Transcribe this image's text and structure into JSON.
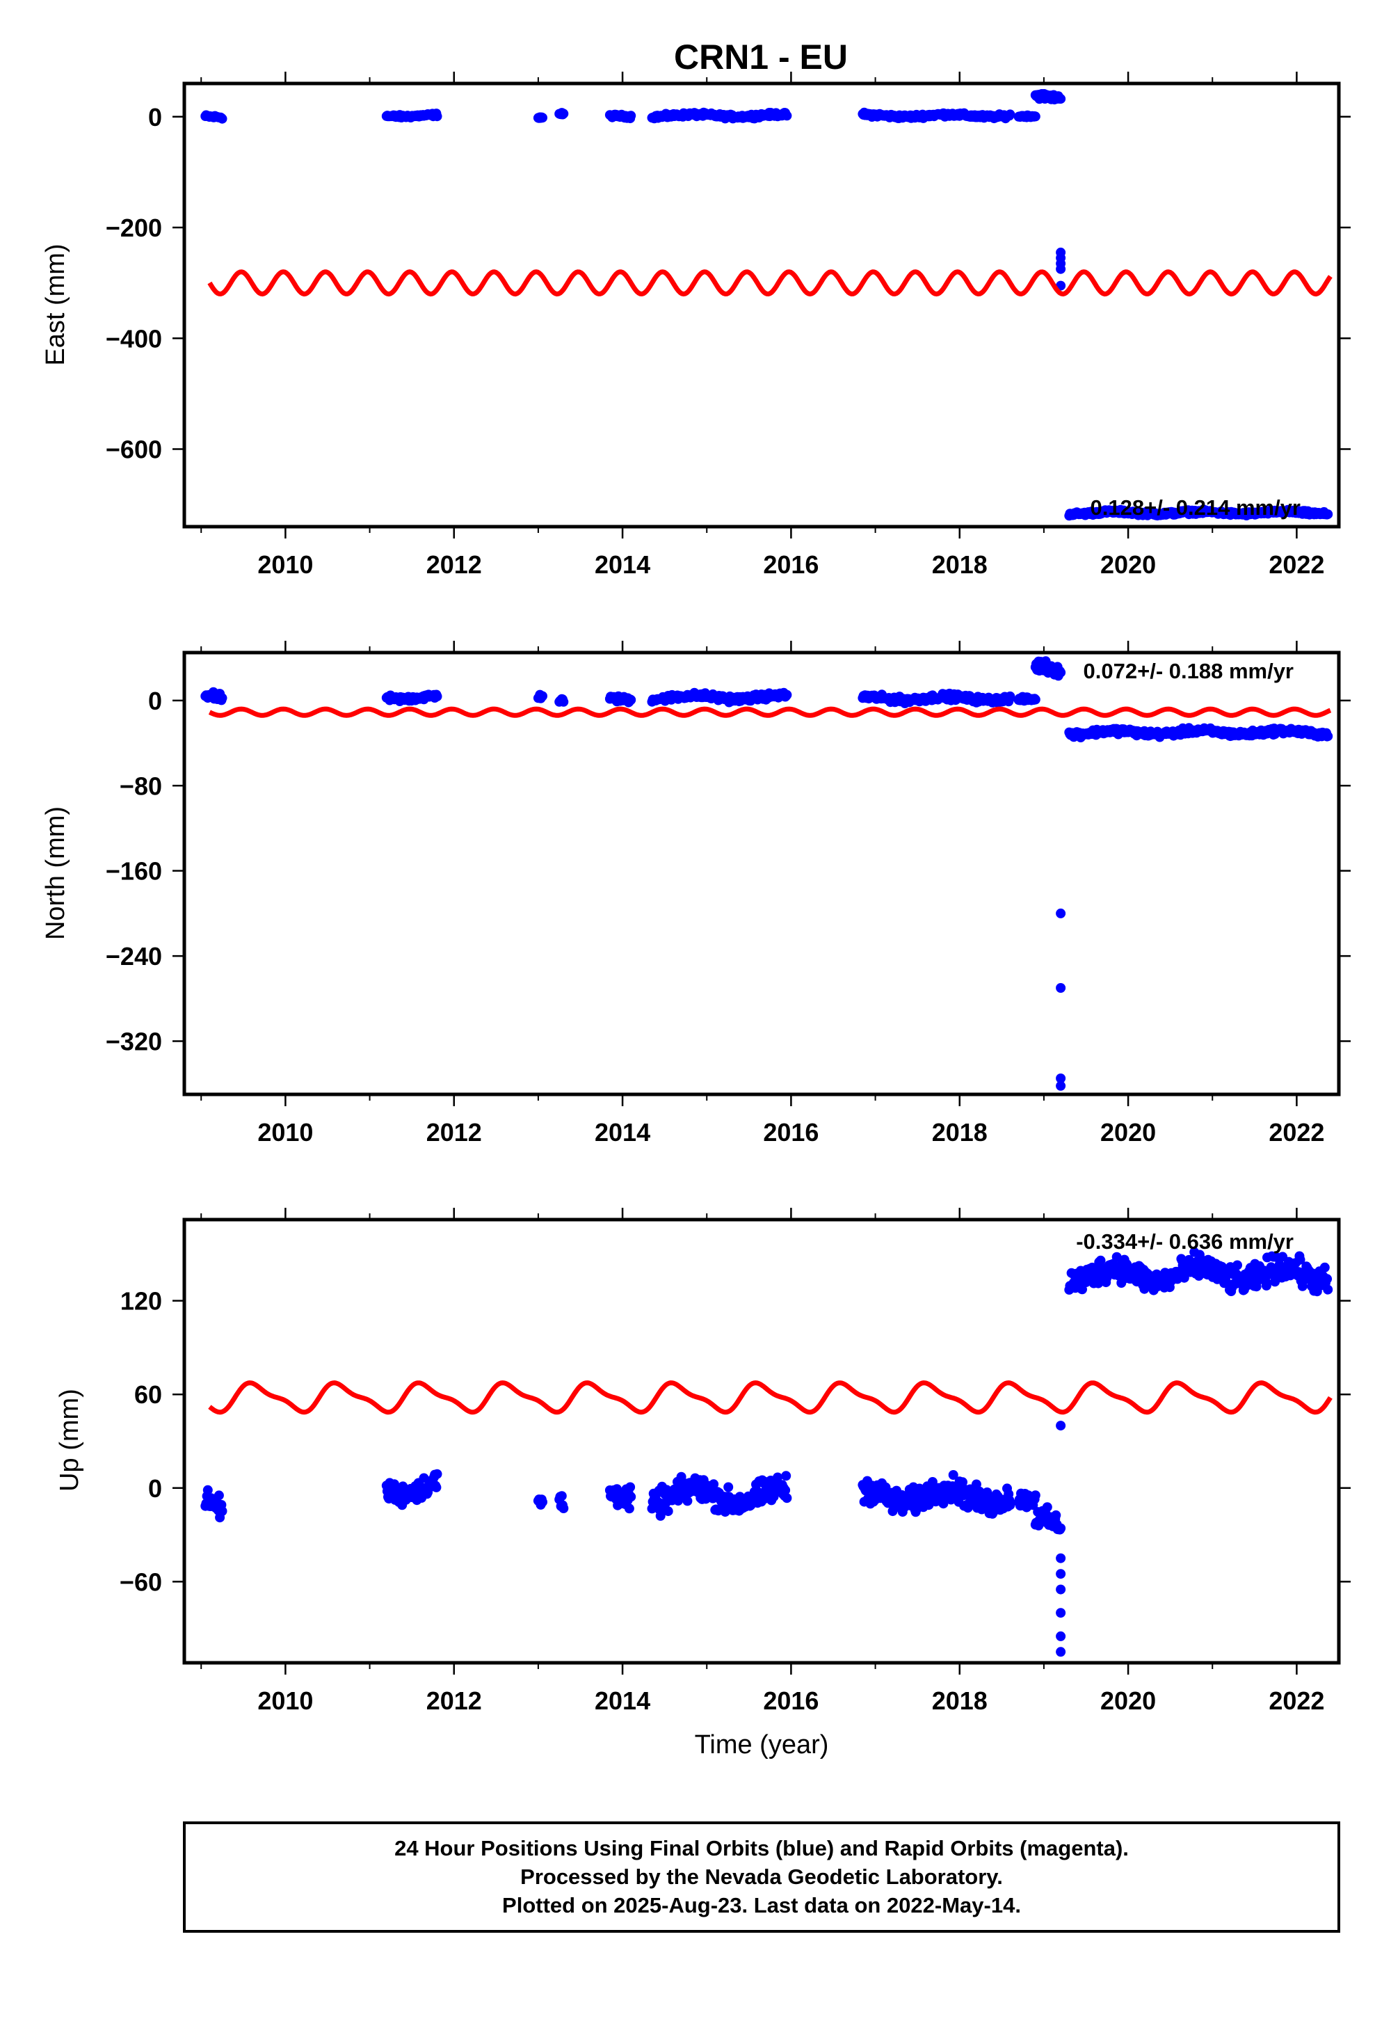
{
  "title": "CRN1 - EU",
  "footer": {
    "lines": [
      "24 Hour Positions Using Final Orbits (blue) and Rapid Orbits (magenta).",
      "Processed by the Nevada Geodetic Laboratory.",
      "Plotted on 2025-Aug-23. Last data on 2022-May-14."
    ]
  },
  "colors": {
    "data": "#0000ff",
    "model": "#ff0000",
    "frame": "#000000",
    "background": "#ffffff"
  },
  "chart_data": [
    {
      "type": "scatter",
      "ylabel": "East (mm)",
      "xlabel": "",
      "xlim": [
        2008.8,
        2022.5
      ],
      "ylim": [
        -740,
        60
      ],
      "xticks": [
        2010,
        2012,
        2014,
        2016,
        2018,
        2020,
        2022
      ],
      "yticks": [
        -600,
        -400,
        -200,
        0
      ],
      "rate_text": "0.128+/- 0.214 mm/yr",
      "model": {
        "mean": -300,
        "amplitude": 20,
        "cycles_per_year": 2.0,
        "x_start": 2009.1,
        "x_end": 2022.4
      },
      "data_segments": [
        {
          "x_start": 2009.05,
          "x_end": 2009.25,
          "y": 0,
          "spread": 4
        },
        {
          "x_start": 2011.2,
          "x_end": 2011.8,
          "y": 2,
          "spread": 4
        },
        {
          "x_start": 2013.0,
          "x_end": 2013.05,
          "y": -2,
          "spread": 3
        },
        {
          "x_start": 2013.25,
          "x_end": 2013.3,
          "y": 6,
          "spread": 3
        },
        {
          "x_start": 2013.85,
          "x_end": 2014.1,
          "y": 0,
          "spread": 4
        },
        {
          "x_start": 2014.35,
          "x_end": 2015.95,
          "y": 2,
          "spread": 5
        },
        {
          "x_start": 2016.85,
          "x_end": 2018.6,
          "y": 2,
          "spread": 5
        },
        {
          "x_start": 2018.7,
          "x_end": 2018.9,
          "y": 0,
          "spread": 3
        },
        {
          "x_start": 2018.9,
          "x_end": 2019.2,
          "y": 35,
          "spread": 8
        },
        {
          "x_start": 2019.3,
          "x_end": 2022.37,
          "y": -715,
          "spread": 5
        }
      ],
      "outliers": [
        {
          "x": 2019.2,
          "y": -245
        },
        {
          "x": 2019.2,
          "y": -255
        },
        {
          "x": 2019.2,
          "y": -265
        },
        {
          "x": 2019.2,
          "y": -275
        },
        {
          "x": 2019.2,
          "y": -305
        }
      ]
    },
    {
      "type": "scatter",
      "ylabel": "North (mm)",
      "xlabel": "",
      "xlim": [
        2008.8,
        2022.5
      ],
      "ylim": [
        -370,
        45
      ],
      "xticks": [
        2010,
        2012,
        2014,
        2016,
        2018,
        2020,
        2022
      ],
      "yticks": [
        -320,
        -240,
        -160,
        -80,
        0
      ],
      "rate_text": "0.072+/- 0.188 mm/yr",
      "model": {
        "mean": -11,
        "amplitude": 3,
        "cycles_per_year": 2.0,
        "x_start": 2009.1,
        "x_end": 2022.4
      },
      "data_segments": [
        {
          "x_start": 2009.05,
          "x_end": 2009.25,
          "y": 4,
          "spread": 5
        },
        {
          "x_start": 2011.2,
          "x_end": 2011.8,
          "y": 3,
          "spread": 4
        },
        {
          "x_start": 2013.0,
          "x_end": 2013.05,
          "y": 3,
          "spread": 3
        },
        {
          "x_start": 2013.25,
          "x_end": 2013.3,
          "y": 1,
          "spread": 3
        },
        {
          "x_start": 2013.85,
          "x_end": 2014.1,
          "y": 0,
          "spread": 4
        },
        {
          "x_start": 2014.35,
          "x_end": 2015.95,
          "y": 3,
          "spread": 4
        },
        {
          "x_start": 2016.85,
          "x_end": 2018.6,
          "y": 2,
          "spread": 4
        },
        {
          "x_start": 2018.7,
          "x_end": 2018.9,
          "y": 0,
          "spread": 3
        },
        {
          "x_start": 2018.9,
          "x_end": 2019.2,
          "y": 30,
          "spread": 8
        },
        {
          "x_start": 2019.3,
          "x_end": 2022.37,
          "y": -30,
          "spread": 4
        }
      ],
      "outliers": [
        {
          "x": 2019.2,
          "y": -200
        },
        {
          "x": 2019.2,
          "y": -270
        },
        {
          "x": 2019.2,
          "y": -355
        },
        {
          "x": 2019.2,
          "y": -362
        }
      ]
    },
    {
      "type": "scatter",
      "ylabel": "Up (mm)",
      "xlabel": "Time (year)",
      "xlim": [
        2008.8,
        2022.5
      ],
      "ylim": [
        -112,
        172
      ],
      "xticks": [
        2010,
        2012,
        2014,
        2016,
        2018,
        2020,
        2022
      ],
      "yticks": [
        -60,
        0,
        60,
        120
      ],
      "rate_text": "-0.334+/- 0.636 mm/yr",
      "model": {
        "mean": 58,
        "amplitude": 8,
        "cycles_per_year": 1.0,
        "x_start": 2009.1,
        "x_end": 2022.4
      },
      "data_segments": [
        {
          "x_start": 2009.05,
          "x_end": 2009.25,
          "y": -10,
          "spread": 10
        },
        {
          "x_start": 2011.2,
          "x_end": 2011.8,
          "y": 0,
          "spread": 10
        },
        {
          "x_start": 2013.0,
          "x_end": 2013.05,
          "y": -10,
          "spread": 6
        },
        {
          "x_start": 2013.25,
          "x_end": 2013.3,
          "y": -5,
          "spread": 12
        },
        {
          "x_start": 2013.85,
          "x_end": 2014.1,
          "y": -8,
          "spread": 10
        },
        {
          "x_start": 2014.35,
          "x_end": 2015.95,
          "y": -5,
          "spread": 12
        },
        {
          "x_start": 2016.85,
          "x_end": 2018.6,
          "y": -5,
          "spread": 12
        },
        {
          "x_start": 2018.7,
          "x_end": 2018.9,
          "y": -10,
          "spread": 8
        },
        {
          "x_start": 2018.9,
          "x_end": 2019.2,
          "y": -22,
          "spread": 10
        },
        {
          "x_start": 2019.3,
          "x_end": 2022.37,
          "y": 137,
          "spread": 12
        }
      ],
      "outliers": [
        {
          "x": 2019.2,
          "y": -45
        },
        {
          "x": 2019.2,
          "y": -55
        },
        {
          "x": 2019.2,
          "y": -65
        },
        {
          "x": 2019.2,
          "y": -80
        },
        {
          "x": 2019.2,
          "y": -95
        },
        {
          "x": 2019.2,
          "y": -105
        },
        {
          "x": 2019.2,
          "y": 40
        }
      ]
    }
  ]
}
